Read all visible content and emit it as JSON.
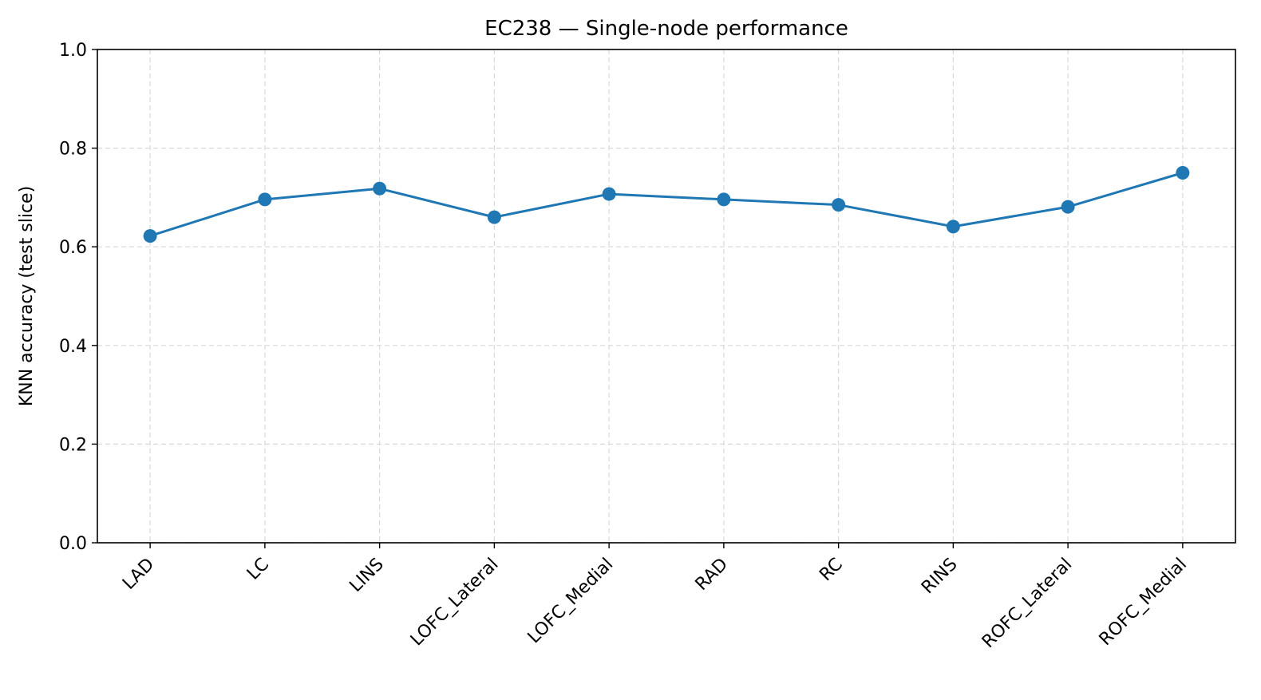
{
  "chart_data": {
    "type": "line",
    "title": "EC238 — Single-node performance",
    "xlabel": "",
    "ylabel": "KNN accuracy (test slice)",
    "categories": [
      "LAD",
      "LC",
      "LINS",
      "LOFC_Lateral",
      "LOFC_Medial",
      "RAD",
      "RC",
      "RINS",
      "ROFC_Lateral",
      "ROFC_Medial"
    ],
    "series": [
      {
        "values": [
          0.622,
          0.696,
          0.718,
          0.66,
          0.707,
          0.696,
          0.685,
          0.641,
          0.681,
          0.75
        ],
        "color": "#1f77b4"
      }
    ],
    "ylim": [
      0,
      1.0
    ],
    "yticks": [
      "0.0",
      "0.2",
      "0.4",
      "0.6",
      "0.8",
      "1.0"
    ],
    "grid": true,
    "legend": "none"
  }
}
